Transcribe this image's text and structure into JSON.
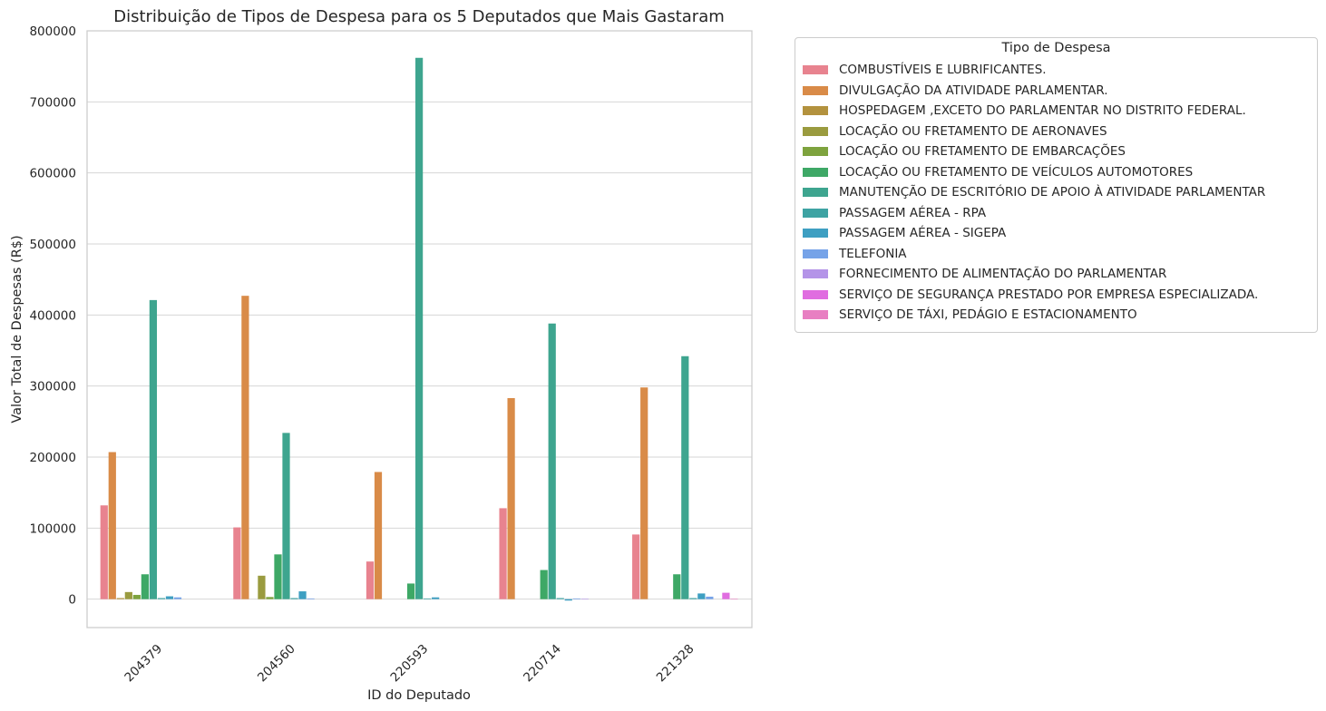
{
  "chart_data": {
    "type": "bar",
    "title": "Distribuição de Tipos de Despesa para os 5 Deputados que Mais Gastaram",
    "xlabel": "ID do Deputado",
    "ylabel": "Valor Total de Despesas (R$)",
    "ylim": [
      -40000,
      800000
    ],
    "yticks": [
      0,
      100000,
      200000,
      300000,
      400000,
      500000,
      600000,
      700000,
      800000
    ],
    "grid": true,
    "legend_title": "Tipo de Despesa",
    "legend_position": "outside-right",
    "categories": [
      "204379",
      "204560",
      "220593",
      "220714",
      "221328"
    ],
    "series": [
      {
        "name": "COMBUSTÍVEIS E LUBRIFICANTES.",
        "color": "#e8838f",
        "values": [
          132000,
          101000,
          53000,
          128000,
          91000
        ]
      },
      {
        "name": "DIVULGAÇÃO DA ATIVIDADE PARLAMENTAR.",
        "color": "#d98b48",
        "values": [
          207000,
          427000,
          179000,
          283000,
          298000
        ]
      },
      {
        "name": "HOSPEDAGEM ,EXCETO DO PARLAMENTAR NO DISTRITO FEDERAL.",
        "color": "#b3923e",
        "values": [
          1500,
          0,
          0,
          0,
          0
        ]
      },
      {
        "name": "LOCAÇÃO OU FRETAMENTO DE AERONAVES",
        "color": "#9a9b3f",
        "values": [
          10000,
          33000,
          0,
          0,
          0
        ]
      },
      {
        "name": "LOCAÇÃO OU FRETAMENTO DE EMBARCAÇÕES",
        "color": "#7ea33e",
        "values": [
          6000,
          3000,
          0,
          0,
          0
        ]
      },
      {
        "name": "LOCAÇÃO OU FRETAMENTO DE VEÍCULOS AUTOMOTORES",
        "color": "#3ea866",
        "values": [
          35000,
          63000,
          22000,
          41000,
          35000
        ]
      },
      {
        "name": "MANUTENÇÃO DE ESCRITÓRIO DE APOIO À ATIVIDADE PARLAMENTAR",
        "color": "#3ea58f",
        "values": [
          421000,
          234000,
          762000,
          388000,
          342000
        ]
      },
      {
        "name": "PASSAGEM AÉREA - RPA",
        "color": "#3ea3a3",
        "values": [
          1500,
          1500,
          1000,
          1500,
          1500
        ]
      },
      {
        "name": "PASSAGEM AÉREA - SIGEPA",
        "color": "#3e9fc2",
        "values": [
          4000,
          11000,
          2500,
          -2000,
          8000
        ]
      },
      {
        "name": "TELEFONIA",
        "color": "#76a3e8",
        "values": [
          2500,
          1000,
          0,
          1000,
          3500
        ]
      },
      {
        "name": "FORNECIMENTO DE ALIMENTAÇÃO DO PARLAMENTAR",
        "color": "#b494e8",
        "values": [
          0,
          0,
          0,
          500,
          0
        ]
      },
      {
        "name": "SERVIÇO DE SEGURANÇA PRESTADO POR EMPRESA ESPECIALIZADA.",
        "color": "#e06de0",
        "values": [
          0,
          0,
          0,
          0,
          9000
        ]
      },
      {
        "name": "SERVIÇO DE TÁXI, PEDÁGIO E ESTACIONAMENTO",
        "color": "#e87fc2",
        "values": [
          0,
          0,
          0,
          0,
          500
        ]
      }
    ]
  }
}
